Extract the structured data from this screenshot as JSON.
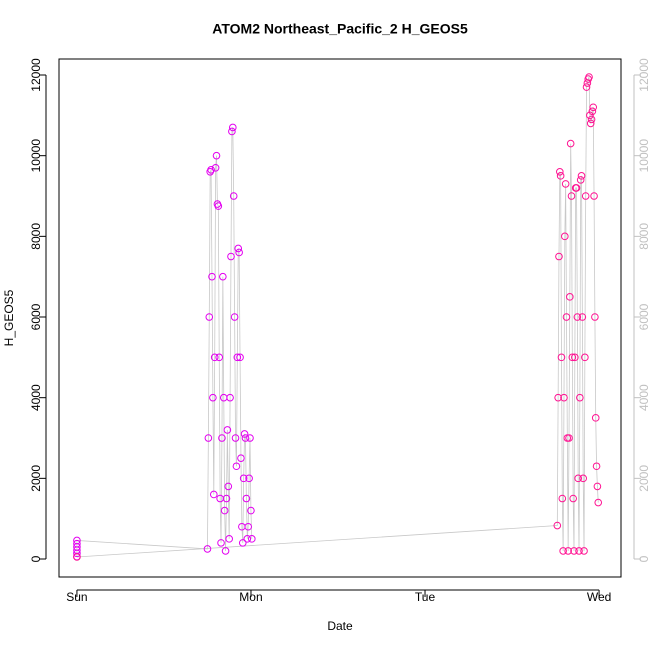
{
  "chart_data": {
    "type": "scatter",
    "title": "ATOM2 Northeast_Pacific_2 H_GEOS5",
    "x_label": "Date",
    "y_label": "H_GEOS5",
    "xlim": [
      -0.103,
      3.126
    ],
    "xticks": [
      {
        "value": 0,
        "label": "Sun"
      },
      {
        "value": 1,
        "label": "Mon"
      },
      {
        "value": 2,
        "label": "Tue"
      },
      {
        "value": 3,
        "label": "Wed"
      }
    ],
    "ylim": [
      -446,
      12397
    ],
    "yticks": [
      0,
      2000,
      4000,
      6000,
      8000,
      10000,
      12000
    ],
    "y2lim": [
      -446,
      12397
    ],
    "y2ticks": [
      0,
      2000,
      4000,
      6000,
      8000,
      10000,
      12000
    ],
    "y2_color": "#c0c0c0",
    "line_color": "#c8c8c8",
    "series": [
      {
        "color": "#e300f0",
        "x": [
          0,
          0,
          0,
          0,
          0,
          0,
          0.75,
          0.7552,
          0.7604,
          0.7656,
          0.7708,
          0.776,
          0.7812,
          0.7864,
          0.7916,
          0.7968,
          0.802,
          0.8072,
          0.8124,
          0.8176,
          0.8228,
          0.828,
          0.8332,
          0.8384,
          0.8436,
          0.8488,
          0.854,
          0.8592,
          0.8644,
          0.8696,
          0.8748,
          0.88,
          0.8852,
          0.8904,
          0.8956,
          0.9008,
          0.906,
          0.9112,
          0.9164,
          0.9216,
          0.9268,
          0.932,
          0.9372,
          0.9424,
          0.9476,
          0.9528,
          0.958,
          0.9632,
          0.9684,
          0.9736,
          0.9788,
          0.984,
          0.9892,
          0.9944,
          0.9996,
          1.0048
        ],
        "values": [
          60,
          140,
          220,
          300,
          380,
          460,
          250,
          3000,
          6000,
          9600,
          9650,
          7000,
          4000,
          1600,
          5000,
          9700,
          10000,
          8800,
          8750,
          5000,
          1500,
          400,
          3000,
          7000,
          4000,
          1200,
          200,
          1500,
          3200,
          1800,
          500,
          4000,
          7500,
          10600,
          10700,
          9000,
          6000,
          3000,
          2300,
          5000,
          7700,
          7600,
          5000,
          2500,
          800,
          400,
          2000,
          3100,
          3000,
          1500,
          500,
          800,
          2000,
          3000,
          1200,
          500
        ]
      },
      {
        "color": "#ff1493",
        "x": [
          0,
          2.76,
          2.7648,
          2.7696,
          2.7744,
          2.7792,
          2.784,
          2.7888,
          2.7936,
          2.7984,
          2.8032,
          2.808,
          2.8128,
          2.8176,
          2.8224,
          2.8272,
          2.832,
          2.8368,
          2.8416,
          2.8464,
          2.8512,
          2.856,
          2.8608,
          2.8656,
          2.8704,
          2.8752,
          2.88,
          2.8848,
          2.8896,
          2.8944,
          2.8992,
          2.904,
          2.9088,
          2.9136,
          2.9184,
          2.9232,
          2.928,
          2.9328,
          2.9376,
          2.9424,
          2.9472,
          2.952,
          2.9568,
          2.9616,
          2.9664,
          2.9712,
          2.976,
          2.9808,
          2.9856,
          2.9904,
          2.9952
        ],
        "values": [
          50,
          830,
          4000,
          7500,
          9600,
          9500,
          5000,
          1500,
          200,
          4000,
          8000,
          9300,
          6000,
          3000,
          200,
          3000,
          6500,
          10300,
          9000,
          5000,
          1500,
          200,
          5000,
          9200,
          9200,
          6000,
          2000,
          200,
          4000,
          9400,
          9500,
          6000,
          2000,
          200,
          5000,
          9000,
          11700,
          11800,
          11900,
          11950,
          11000,
          10800,
          10900,
          11100,
          11200,
          9000,
          6000,
          3500,
          2300,
          1800,
          1400
        ]
      }
    ]
  }
}
